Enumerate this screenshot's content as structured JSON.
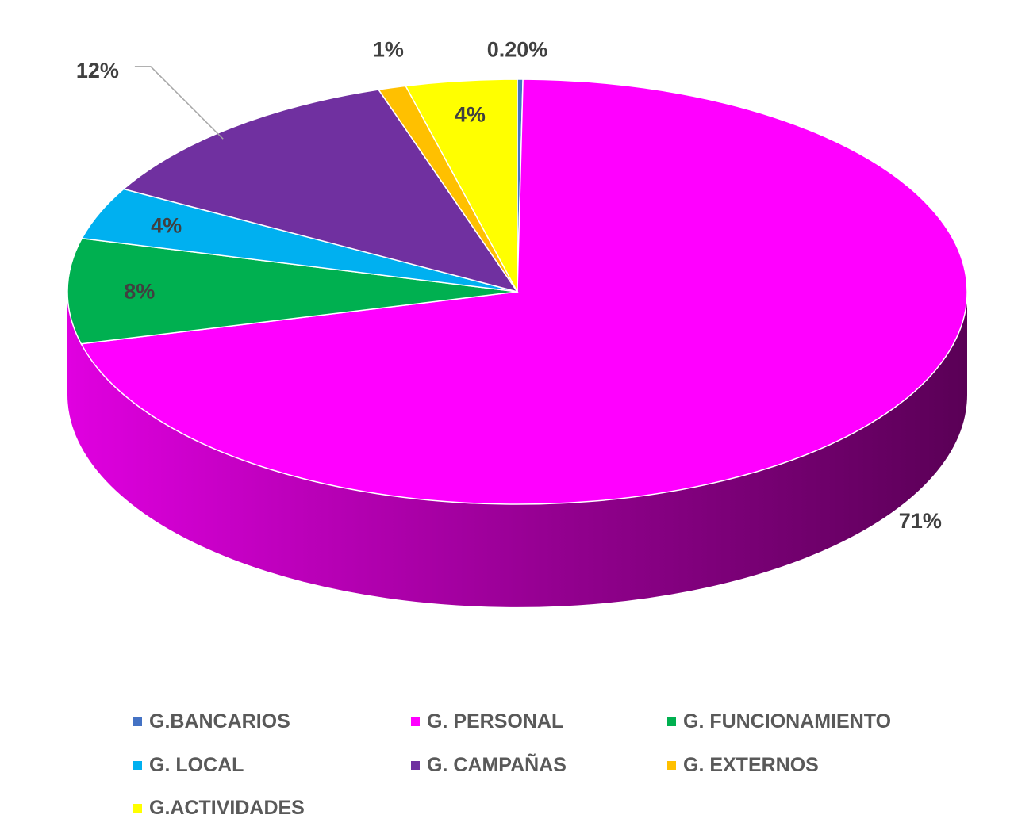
{
  "chart_data": {
    "type": "pie",
    "title": "",
    "style": "3d",
    "legend_position": "bottom",
    "slices": [
      {
        "name": "G.BANCARIOS",
        "value": 0.2,
        "label": "0.20%",
        "color": "#4472c4"
      },
      {
        "name": "G. PERSONAL",
        "value": 71,
        "label": "71%",
        "color": "#ff00ff"
      },
      {
        "name": "G. FUNCIONAMIENTO",
        "value": 8,
        "label": "8%",
        "color": "#00b050"
      },
      {
        "name": "G. LOCAL",
        "value": 4,
        "label": "4%",
        "color": "#00b0f0"
      },
      {
        "name": "G. CAMPAÑAS",
        "value": 12,
        "label": "12%",
        "color": "#7030a0"
      },
      {
        "name": "G. EXTERNOS",
        "value": 1,
        "label": "1%",
        "color": "#ffc000"
      },
      {
        "name": "G.ACTIVIDADES",
        "value": 4,
        "label": "4%",
        "color": "#ffff00"
      }
    ]
  },
  "colors": {
    "label_text": "#404040",
    "legend_text": "#595959",
    "side_dark": "#5a0056",
    "side_light": "#e000e0"
  }
}
